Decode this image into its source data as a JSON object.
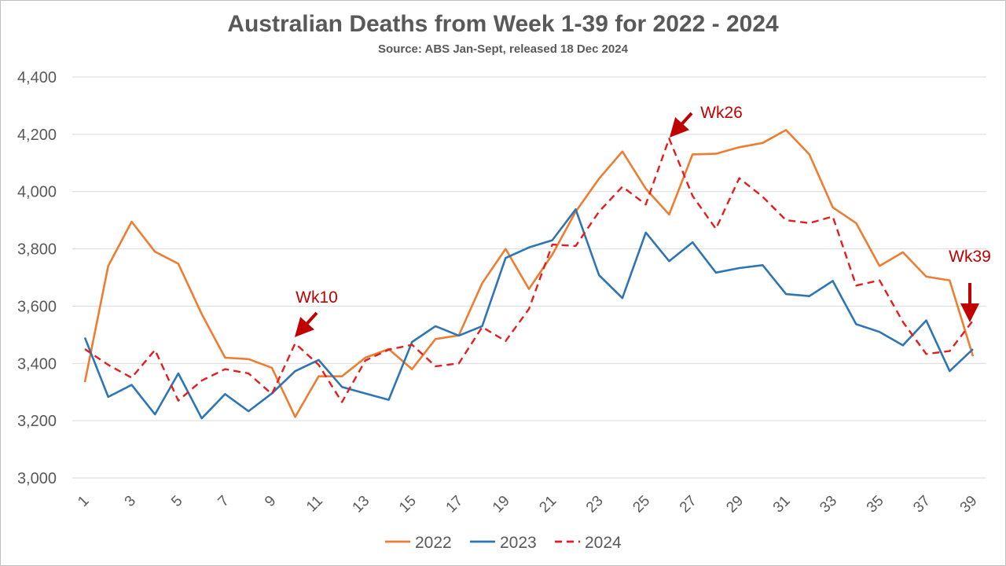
{
  "chart_data": {
    "type": "line",
    "title": "Australian Deaths from Week 1-39 for 2022 - 2024",
    "subtitle": "Source: ABS Jan-Sept, released 18 Dec  2024",
    "xlabel": "",
    "ylabel": "",
    "ylim": [
      3000,
      4400
    ],
    "yticks": [
      3000,
      3200,
      3400,
      3600,
      3800,
      4000,
      4200,
      4400
    ],
    "ytick_labels": [
      "3,000",
      "3,200",
      "3,400",
      "3,600",
      "3,800",
      "4,000",
      "4,200",
      "4,400"
    ],
    "x": [
      1,
      2,
      3,
      4,
      5,
      6,
      7,
      8,
      9,
      10,
      11,
      12,
      13,
      14,
      15,
      16,
      17,
      18,
      19,
      20,
      21,
      22,
      23,
      24,
      25,
      26,
      27,
      28,
      29,
      30,
      31,
      32,
      33,
      34,
      35,
      36,
      37,
      38,
      39
    ],
    "xtick_labels": [
      "1",
      "3",
      "5",
      "7",
      "9",
      "11",
      "13",
      "15",
      "17",
      "19",
      "21",
      "23",
      "25",
      "27",
      "29",
      "31",
      "33",
      "35",
      "37",
      "39"
    ],
    "grid": true,
    "legend_position": "bottom",
    "series": [
      {
        "name": "2022",
        "color": "#ed7d31",
        "style": "solid",
        "values": [
          3335,
          3740,
          3895,
          3790,
          3748,
          3572,
          3420,
          3415,
          3385,
          3213,
          3355,
          3355,
          3420,
          3450,
          3380,
          3485,
          3498,
          3680,
          3800,
          3660,
          3780,
          3930,
          4045,
          4140,
          4010,
          3920,
          4130,
          4132,
          4155,
          4170,
          4215,
          4130,
          3945,
          3890,
          3740,
          3788,
          3703,
          3690,
          3425
        ]
      },
      {
        "name": "2023",
        "color": "#2e75b6",
        "style": "solid",
        "values": [
          3490,
          3283,
          3325,
          3222,
          3365,
          3208,
          3293,
          3233,
          3295,
          3373,
          3412,
          3318,
          3295,
          3273,
          3475,
          3530,
          3497,
          3530,
          3768,
          3805,
          3830,
          3938,
          3708,
          3628,
          3857,
          3757,
          3823,
          3717,
          3733,
          3743,
          3642,
          3635,
          3688,
          3537,
          3510,
          3463,
          3550,
          3373,
          3450
        ]
      },
      {
        "name": "2024",
        "color": "#e41e1e",
        "style": "dashed",
        "values": [
          3450,
          3395,
          3350,
          3447,
          3270,
          3340,
          3380,
          3365,
          3293,
          3470,
          3395,
          3265,
          3410,
          3448,
          3465,
          3390,
          3400,
          3527,
          3478,
          3590,
          3815,
          3810,
          3930,
          4017,
          3955,
          4185,
          3985,
          3870,
          4047,
          3982,
          3900,
          3890,
          3913,
          3672,
          3690,
          3545,
          3433,
          3443,
          3550
        ]
      }
    ],
    "annotations": [
      {
        "text": "Wk10",
        "week": 10,
        "color": "#c00000"
      },
      {
        "text": "Wk26",
        "week": 26,
        "color": "#c00000"
      },
      {
        "text": "Wk39",
        "week": 39,
        "color": "#c00000"
      }
    ]
  }
}
